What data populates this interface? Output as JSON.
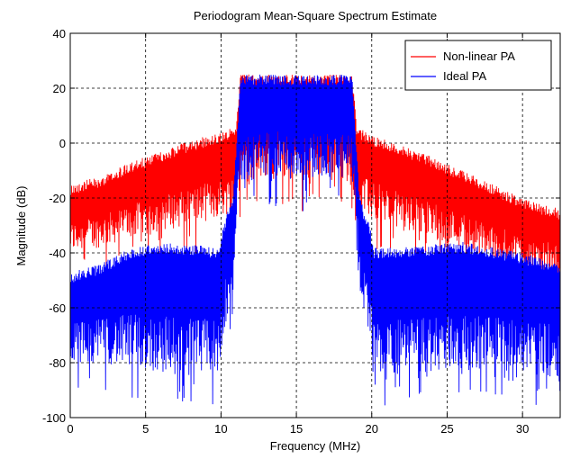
{
  "chart_data": {
    "type": "line",
    "title": "Periodogram Mean-Square Spectrum Estimate",
    "xlabel": "Frequency (MHz)",
    "ylabel": "Magnitude (dB)",
    "xlim": [
      0,
      32.5
    ],
    "ylim": [
      -100,
      40
    ],
    "xticks": [
      0,
      5,
      10,
      15,
      20,
      25,
      30
    ],
    "yticks": [
      -100,
      -80,
      -60,
      -40,
      -20,
      0,
      20,
      40
    ],
    "grid": true,
    "legend_position": "top-right",
    "series": [
      {
        "name": "Non-linear PA",
        "color": "#ff0000",
        "noise_spread_db": 28,
        "x": [
          0,
          2,
          4,
          6,
          8,
          10,
          11,
          11.3,
          13,
          15,
          17,
          18.7,
          19,
          20,
          22,
          24,
          26,
          28,
          30,
          32.5
        ],
        "upper": [
          -15,
          -12,
          -7,
          -3,
          1,
          4,
          6,
          25,
          25,
          25,
          25,
          25,
          6,
          3,
          -1,
          -5,
          -10,
          -15,
          -20,
          -24
        ],
        "lower": [
          -40,
          -38,
          -35,
          -32,
          -30,
          -27,
          -25,
          -15,
          -12,
          -14,
          -12,
          -15,
          -25,
          -28,
          -32,
          -35,
          -38,
          -42,
          -45,
          -48
        ]
      },
      {
        "name": "Ideal PA",
        "color": "#0000ff",
        "x": [
          0,
          2,
          4,
          6,
          8,
          9.9,
          10.1,
          10.8,
          11.3,
          13,
          15,
          17,
          18.7,
          19.2,
          19.9,
          20.1,
          22,
          24,
          26,
          28,
          30,
          32.5
        ],
        "upper": [
          -47,
          -44,
          -38,
          -36,
          -37,
          -38,
          -30,
          -20,
          25,
          25,
          25,
          25,
          25,
          -20,
          -30,
          -38,
          -38,
          -37,
          -36,
          -38,
          -40,
          -44
        ],
        "lower": [
          -80,
          -80,
          -82,
          -84,
          -85,
          -86,
          -70,
          -55,
          -15,
          -12,
          -14,
          -12,
          -15,
          -55,
          -70,
          -86,
          -85,
          -84,
          -82,
          -83,
          -84,
          -85
        ]
      }
    ]
  }
}
